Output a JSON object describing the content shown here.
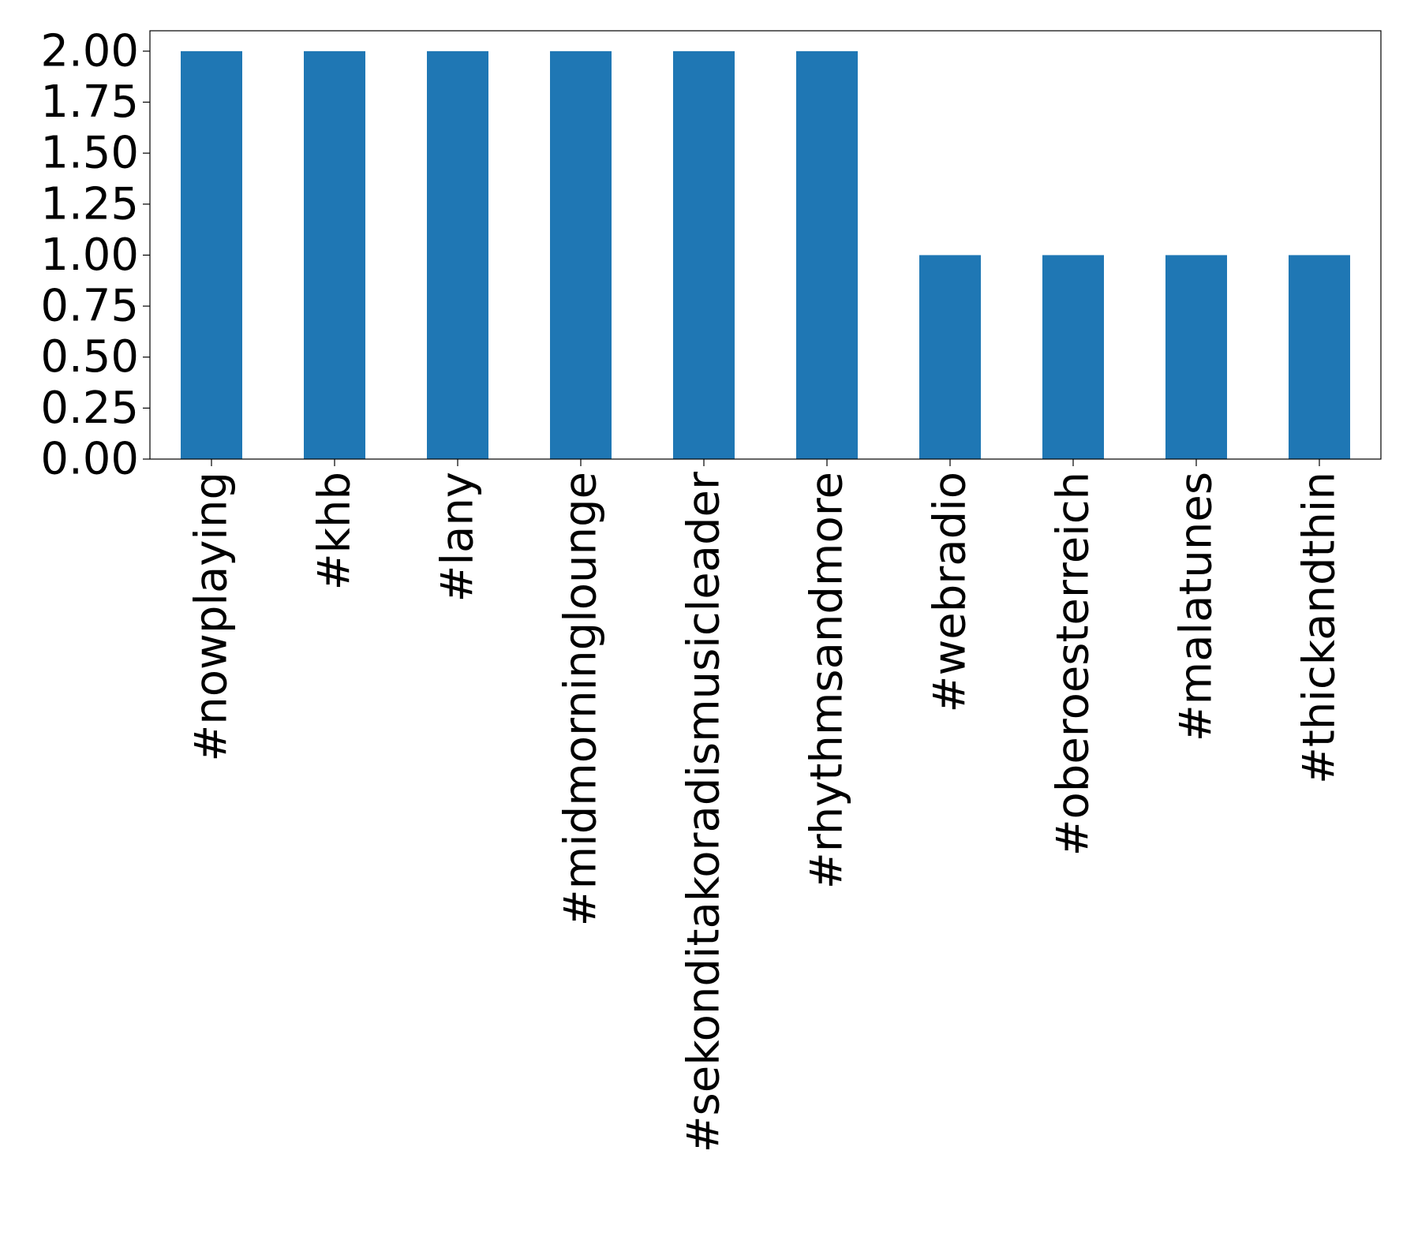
{
  "chart_data": {
    "type": "bar",
    "title": "",
    "xlabel": "",
    "ylabel": "",
    "categories": [
      "#nowplaying",
      "#khb",
      "#lany",
      "#midmorninglounge",
      "#sekonditakoradismusicleader",
      "#rhythmsandmore",
      "#webradio",
      "#oberoesterreich",
      "#malatunes",
      "#thickandthin"
    ],
    "values": [
      2,
      2,
      2,
      2,
      2,
      2,
      1,
      1,
      1,
      1
    ],
    "ylim": [
      0,
      2.1
    ],
    "yticks": [
      "0.00",
      "0.25",
      "0.50",
      "0.75",
      "1.00",
      "1.25",
      "1.50",
      "1.75",
      "2.00"
    ],
    "grid": false,
    "legend": false,
    "bar_color": "#1f77b4"
  }
}
